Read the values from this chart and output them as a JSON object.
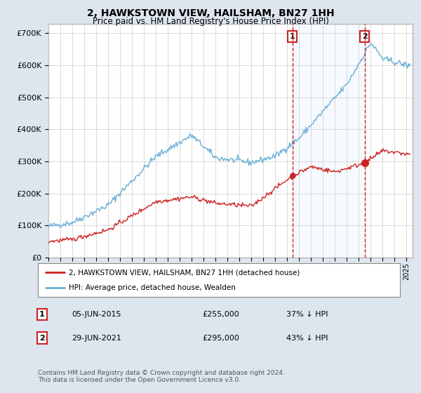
{
  "title": "2, HAWKSTOWN VIEW, HAILSHAM, BN27 1HH",
  "subtitle": "Price paid vs. HM Land Registry's House Price Index (HPI)",
  "ylabel_ticks": [
    "£0",
    "£100K",
    "£200K",
    "£300K",
    "£400K",
    "£500K",
    "£600K",
    "£700K"
  ],
  "ytick_values": [
    0,
    100000,
    200000,
    300000,
    400000,
    500000,
    600000,
    700000
  ],
  "ylim": [
    0,
    730000
  ],
  "xlim_start": 1995.0,
  "xlim_end": 2025.5,
  "background_color": "#dde5ef",
  "plot_bg_color": "#ffffff",
  "shade_color": "#ddeeff",
  "hpi_color": "#6baed6",
  "price_color": "#cc2222",
  "sale1_date": 2015.44,
  "sale1_price": 255000,
  "sale2_date": 2021.49,
  "sale2_price": 295000,
  "legend_entry1": "2, HAWKSTOWN VIEW, HAILSHAM, BN27 1HH (detached house)",
  "legend_entry2": "HPI: Average price, detached house, Wealden",
  "footer": "Contains HM Land Registry data © Crown copyright and database right 2024.\nThis data is licensed under the Open Government Licence v3.0.",
  "grid_color": "#cccccc"
}
